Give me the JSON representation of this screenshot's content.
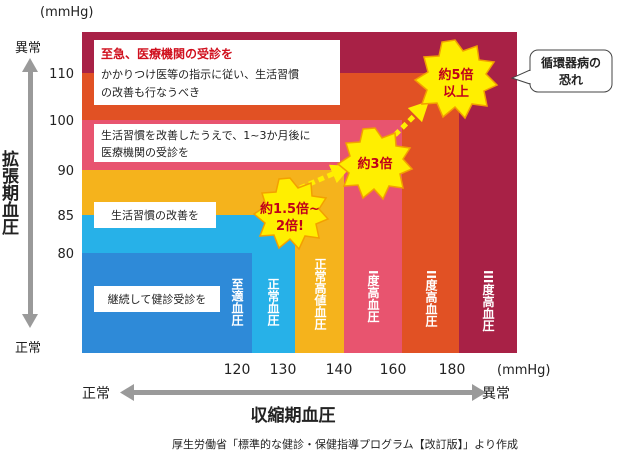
{
  "y_axis": {
    "unit": "(mmHg)",
    "title": "拡張期血圧",
    "top_word": "異常",
    "bottom_word": "正常",
    "ticks": [
      "110",
      "100",
      "90",
      "85",
      "80"
    ]
  },
  "x_axis": {
    "unit": "(mmHg)",
    "title": "収縮期血圧",
    "left_word": "正常",
    "right_word": "異常",
    "ticks": [
      "120",
      "130",
      "140",
      "160",
      "180"
    ]
  },
  "zones": [
    {
      "label": "至適血圧",
      "color": "#2e8ad8"
    },
    {
      "label": "正常血圧",
      "color": "#27b1e8"
    },
    {
      "label": "正常高値血圧",
      "color": "#f5b31c"
    },
    {
      "label": "I度高血圧",
      "color": "#e8546f"
    },
    {
      "label": "II度高血圧",
      "color": "#e15124"
    },
    {
      "label": "III度高血圧",
      "color": "#a82146"
    }
  ],
  "advice": {
    "l1": "継続して健診受診を",
    "l2": "生活習慣の改善を",
    "l3_line1": "生活習慣を改善したうえで、1~3か月後に",
    "l3_line2": "医療機関の受診を",
    "l4_title": "至急、医療機関の受診を",
    "l4_line1": "かかりつけ医等の指示に従い、生活習慣",
    "l4_line2": "の改善も行なうべき"
  },
  "risk": {
    "r1_line1": "約1.5倍~",
    "r1_line2": "2倍!",
    "r2": "約3倍",
    "r3_line1": "約5倍",
    "r3_line2": "以上"
  },
  "callout": {
    "line1": "循環器病の",
    "line2": "恐れ"
  },
  "source": "厚生労働省「標準的な健診・保健指導プログラム【改訂版】」より作成"
}
